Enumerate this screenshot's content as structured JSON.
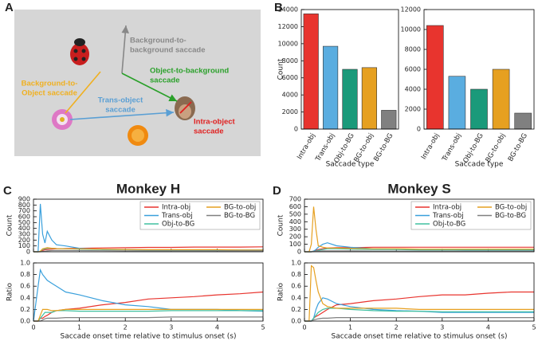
{
  "panel_labels": [
    "A",
    "B",
    "C",
    "D"
  ],
  "diagram": {
    "bg_to_bg": [
      "Background-to-",
      "background saccade"
    ],
    "obj_to_bg": [
      "Object-to-background",
      "saccade"
    ],
    "bg_to_obj": [
      "Background-to-",
      "Object saccade"
    ],
    "trans_obj": [
      "Trans-object",
      "saccade"
    ],
    "intra_obj": [
      "Intra-object",
      "saccade"
    ]
  },
  "chart_data": [
    {
      "type": "bar",
      "categories": [
        "Intra-obj",
        "Trans-obj",
        "Obj-to-BG",
        "BG-to-obj",
        "BG-to-BG"
      ],
      "values": [
        13500,
        9700,
        7000,
        7200,
        2200
      ],
      "colors": [
        "#e8342e",
        "#5aade0",
        "#1a9a7a",
        "#e6a020",
        "#808080"
      ],
      "ylim": [
        0,
        14000
      ],
      "yticks": [
        0,
        2000,
        4000,
        6000,
        8000,
        10000,
        12000,
        14000
      ],
      "ylabel": "Count",
      "xlabel": "Saccade type"
    },
    {
      "type": "bar",
      "categories": [
        "Intra-obj",
        "Trans-obj",
        "Obj-to-BG",
        "BG-to-obj",
        "BG-to-BG"
      ],
      "values": [
        10400,
        5300,
        4000,
        6000,
        1600
      ],
      "colors": [
        "#e8342e",
        "#5aade0",
        "#1a9a7a",
        "#e6a020",
        "#808080"
      ],
      "ylim": [
        0,
        12000
      ],
      "yticks": [
        0,
        2000,
        4000,
        6000,
        8000,
        10000,
        12000
      ],
      "xlabel": "Saccade type"
    },
    {
      "type": "line",
      "title": "Monkey H",
      "ylabel": "Count",
      "legend": "upper right",
      "x": [
        0,
        0.1,
        0.15,
        0.2,
        0.25,
        0.3,
        0.4,
        0.5,
        0.7,
        1,
        1.5,
        2,
        2.5,
        3,
        3.5,
        4,
        4.5,
        5
      ],
      "xlim": [
        0,
        5
      ],
      "xticks": [
        0,
        1,
        2,
        3,
        4,
        5
      ],
      "ylim": [
        0,
        900
      ],
      "yticks": [
        0,
        100,
        200,
        300,
        400,
        500,
        600,
        700,
        800,
        900
      ],
      "series": [
        {
          "name": "Intra-obj",
          "color": "#e8342e",
          "values": [
            0,
            0,
            5,
            20,
            35,
            40,
            45,
            50,
            55,
            60,
            65,
            70,
            75,
            75,
            80,
            80,
            80,
            85
          ]
        },
        {
          "name": "Trans-obj",
          "color": "#3aa0dc",
          "values": [
            0,
            0,
            820,
            300,
            150,
            350,
            200,
            120,
            100,
            60,
            40,
            35,
            30,
            30,
            30,
            28,
            28,
            28
          ]
        },
        {
          "name": "Obj-to-BG",
          "color": "#40c0a0",
          "values": [
            0,
            0,
            5,
            40,
            50,
            60,
            60,
            55,
            50,
            45,
            40,
            35,
            30,
            30,
            30,
            30,
            30,
            30
          ]
        },
        {
          "name": "BG-to-obj",
          "color": "#e6a020",
          "values": [
            0,
            0,
            10,
            50,
            60,
            70,
            60,
            55,
            50,
            50,
            45,
            40,
            35,
            35,
            35,
            35,
            30,
            30
          ]
        },
        {
          "name": "BG-to-BG",
          "color": "#808080",
          "values": [
            0,
            0,
            0,
            5,
            10,
            15,
            20,
            20,
            20,
            20,
            18,
            15,
            15,
            15,
            15,
            15,
            15,
            15
          ]
        }
      ]
    },
    {
      "type": "line",
      "ylabel": "Ratio",
      "xlabel": "Saccade onset time relative to stimulus onset  (s)",
      "x": [
        0,
        0.1,
        0.15,
        0.2,
        0.25,
        0.3,
        0.4,
        0.5,
        0.7,
        1,
        1.5,
        2,
        2.5,
        3,
        3.5,
        4,
        4.5,
        5
      ],
      "xlim": [
        0,
        5
      ],
      "xticks": [
        0,
        1,
        2,
        3,
        4,
        5
      ],
      "ylim": [
        0,
        1
      ],
      "yticks": [
        {
          "value": 0,
          "label": "0.0"
        },
        0.2,
        0.4,
        0.6,
        0.8,
        {
          "value": 1,
          "label": "1.0"
        }
      ],
      "series": [
        {
          "color": "#e8342e",
          "values": [
            0,
            0,
            0.05,
            0.05,
            0.08,
            0.1,
            0.15,
            0.18,
            0.2,
            0.22,
            0.28,
            0.32,
            0.38,
            0.4,
            0.42,
            0.45,
            0.47,
            0.5
          ]
        },
        {
          "color": "#3aa0dc",
          "values": [
            0,
            0.6,
            0.88,
            0.8,
            0.75,
            0.7,
            0.65,
            0.6,
            0.5,
            0.45,
            0.35,
            0.28,
            0.25,
            0.2,
            0.2,
            0.2,
            0.18,
            0.17
          ]
        },
        {
          "color": "#40c0a0",
          "values": [
            0,
            0,
            0.05,
            0.1,
            0.15,
            0.15,
            0.15,
            0.18,
            0.18,
            0.17,
            0.17,
            0.17,
            0.17,
            0.18,
            0.18,
            0.18,
            0.18,
            0.18
          ]
        },
        {
          "color": "#e6a020",
          "values": [
            0,
            0,
            0.1,
            0.2,
            0.2,
            0.2,
            0.18,
            0.18,
            0.2,
            0.2,
            0.2,
            0.2,
            0.2,
            0.2,
            0.2,
            0.2,
            0.2,
            0.2
          ]
        },
        {
          "color": "#808080",
          "values": [
            0,
            0,
            0,
            0.02,
            0.04,
            0.05,
            0.05,
            0.05,
            0.06,
            0.06,
            0.06,
            0.06,
            0.06,
            0.07,
            0.07,
            0.07,
            0.07,
            0.07
          ]
        }
      ]
    },
    {
      "type": "line",
      "title": "Monkey S",
      "ylabel": "Count",
      "legend": "upper right",
      "x": [
        0,
        0.1,
        0.15,
        0.2,
        0.25,
        0.3,
        0.4,
        0.5,
        0.7,
        1,
        1.5,
        2,
        2.5,
        3,
        3.5,
        4,
        4.5,
        5
      ],
      "xlim": [
        0,
        5
      ],
      "xticks": [
        0,
        1,
        2,
        3,
        4,
        5
      ],
      "ylim": [
        0,
        700
      ],
      "yticks": [
        0,
        100,
        200,
        300,
        400,
        500,
        600,
        700
      ],
      "series": [
        {
          "name": "Intra-obj",
          "color": "#e8342e",
          "values": [
            0,
            0,
            0,
            10,
            20,
            30,
            40,
            50,
            55,
            55,
            60,
            60,
            60,
            60,
            60,
            60,
            60,
            60
          ]
        },
        {
          "name": "Trans-obj",
          "color": "#3aa0dc",
          "values": [
            0,
            0,
            0,
            10,
            30,
            60,
            100,
            120,
            80,
            60,
            40,
            35,
            30,
            30,
            25,
            25,
            25,
            25
          ]
        },
        {
          "name": "Obj-to-BG",
          "color": "#40c0a0",
          "values": [
            0,
            0,
            0,
            5,
            10,
            20,
            30,
            40,
            40,
            35,
            30,
            30,
            25,
            25,
            25,
            25,
            25,
            25
          ]
        },
        {
          "name": "BG-to-obj",
          "color": "#e6a020",
          "values": [
            0,
            0,
            100,
            600,
            300,
            80,
            60,
            50,
            50,
            45,
            40,
            40,
            35,
            35,
            35,
            35,
            35,
            35
          ]
        },
        {
          "name": "BG-to-BG",
          "color": "#808080",
          "values": [
            0,
            0,
            0,
            5,
            8,
            10,
            12,
            12,
            12,
            12,
            10,
            10,
            10,
            10,
            10,
            10,
            10,
            10
          ]
        }
      ]
    },
    {
      "type": "line",
      "ylabel": "Ratio",
      "xlabel": "Saccade onset time relative to stimulus onset  (s)",
      "x": [
        0,
        0.1,
        0.15,
        0.2,
        0.25,
        0.3,
        0.4,
        0.5,
        0.7,
        1,
        1.5,
        2,
        2.5,
        3,
        3.5,
        4,
        4.5,
        5
      ],
      "xlim": [
        0,
        5
      ],
      "xticks": [
        0,
        1,
        2,
        3,
        4,
        5
      ],
      "ylim": [
        0,
        1
      ],
      "yticks": [
        {
          "value": 0,
          "label": "0.0"
        },
        0.2,
        0.4,
        0.6,
        0.8,
        {
          "value": 1,
          "label": "1.0"
        }
      ],
      "series": [
        {
          "color": "#e8342e",
          "values": [
            0,
            0,
            0,
            0.05,
            0.08,
            0.1,
            0.15,
            0.2,
            0.28,
            0.3,
            0.35,
            0.38,
            0.42,
            0.45,
            0.45,
            0.48,
            0.5,
            0.5
          ]
        },
        {
          "color": "#3aa0dc",
          "values": [
            0,
            0,
            0,
            0.05,
            0.2,
            0.3,
            0.4,
            0.38,
            0.3,
            0.25,
            0.2,
            0.18,
            0.17,
            0.15,
            0.15,
            0.15,
            0.15,
            0.15
          ]
        },
        {
          "color": "#40c0a0",
          "values": [
            0,
            0,
            0,
            0.05,
            0.1,
            0.15,
            0.2,
            0.22,
            0.22,
            0.2,
            0.18,
            0.17,
            0.17,
            0.16,
            0.16,
            0.16,
            0.16,
            0.16
          ]
        },
        {
          "color": "#e6a020",
          "values": [
            0,
            0,
            0.95,
            0.92,
            0.7,
            0.5,
            0.3,
            0.25,
            0.22,
            0.22,
            0.22,
            0.22,
            0.2,
            0.2,
            0.2,
            0.2,
            0.2,
            0.2
          ]
        },
        {
          "color": "#808080",
          "values": [
            0,
            0,
            0,
            0.02,
            0.03,
            0.04,
            0.05,
            0.05,
            0.06,
            0.06,
            0.06,
            0.06,
            0.06,
            0.06,
            0.06,
            0.06,
            0.06,
            0.06
          ]
        }
      ]
    }
  ]
}
